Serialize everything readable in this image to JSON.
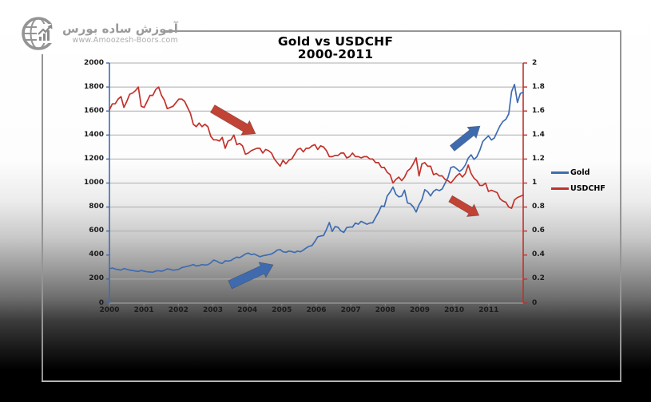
{
  "logo": {
    "brand_fa": "آموزش ساده بورس",
    "website": "www.Amoozesh-Boors.com"
  },
  "chart": {
    "title_line1": "Gold vs USDCHF",
    "title_line2": "2000-2011",
    "legend": [
      {
        "label": "Gold",
        "color": "#3E6CB2"
      },
      {
        "label": "USDCHF",
        "color": "#C2312B"
      }
    ]
  },
  "chart_data": {
    "type": "line",
    "title": "Gold vs USDCHF 2000-2011",
    "grid": "horizontal",
    "legend_position": "right",
    "colors": {
      "grid": "#ACACAC",
      "xtick": "#888888"
    },
    "x_ticks": [
      "2000",
      "2001",
      "2002",
      "2003",
      "2004",
      "2005",
      "2006",
      "2007",
      "2008",
      "2009",
      "2010",
      "2011"
    ],
    "x_range": [
      2000,
      2012
    ],
    "left_axis": {
      "series": "Gold",
      "min": 0,
      "max": 2000,
      "step": 200,
      "color": "#3E6CB2",
      "tick_labels": [
        "0",
        "200",
        "400",
        "600",
        "800",
        "1000",
        "1200",
        "1400",
        "1600",
        "1800",
        "2000"
      ]
    },
    "right_axis": {
      "series": "USDCHF",
      "min": 0,
      "max": 2,
      "step": 0.2,
      "color": "#C2312B",
      "tick_labels": [
        "0",
        "0.2",
        "0.4",
        "0.6",
        "0.8",
        "1",
        "1.2",
        "1.4",
        "1.6",
        "1.8",
        "2"
      ]
    },
    "series": [
      {
        "name": "Gold",
        "axis": "left",
        "color": "#3E6CB2",
        "x_start_year": 2000,
        "interval": "monthly",
        "values": [
          285,
          293,
          284,
          279,
          275,
          288,
          281,
          275,
          271,
          267,
          264,
          272,
          266,
          261,
          259,
          257,
          267,
          270,
          265,
          273,
          285,
          281,
          274,
          277,
          282,
          296,
          301,
          307,
          313,
          321,
          309,
          313,
          321,
          317,
          320,
          334,
          358,
          351,
          336,
          330,
          352,
          350,
          355,
          371,
          383,
          379,
          393,
          409,
          417,
          404,
          409,
          398,
          386,
          394,
          399,
          403,
          409,
          423,
          441,
          446,
          427,
          423,
          433,
          429,
          421,
          433,
          427,
          441,
          459,
          473,
          479,
          513,
          553,
          559,
          563,
          613,
          671,
          597,
          637,
          631,
          601,
          589,
          629,
          633,
          633,
          667,
          657,
          681,
          669,
          657,
          667,
          669,
          715,
          757,
          809,
          805,
          891,
          925,
          967,
          907,
          885,
          891,
          941,
          835,
          827,
          803,
          759,
          819,
          861,
          945,
          927,
          893,
          931,
          947,
          937,
          951,
          999,
          1045,
          1129,
          1137,
          1119,
          1097,
          1115,
          1151,
          1207,
          1235,
          1197,
          1219,
          1273,
          1345,
          1371,
          1393,
          1359,
          1375,
          1427,
          1477,
          1513,
          1531,
          1576,
          1762,
          1821,
          1671,
          1746,
          1756
        ]
      },
      {
        "name": "USDCHF",
        "axis": "right",
        "color": "#C2312B",
        "x_start_year": 2000,
        "interval": "monthly",
        "values": [
          1.61,
          1.66,
          1.66,
          1.7,
          1.72,
          1.63,
          1.68,
          1.74,
          1.75,
          1.77,
          1.8,
          1.64,
          1.63,
          1.68,
          1.73,
          1.73,
          1.78,
          1.8,
          1.73,
          1.69,
          1.62,
          1.63,
          1.64,
          1.67,
          1.7,
          1.7,
          1.68,
          1.63,
          1.58,
          1.49,
          1.47,
          1.5,
          1.47,
          1.49,
          1.47,
          1.39,
          1.36,
          1.36,
          1.35,
          1.38,
          1.29,
          1.35,
          1.36,
          1.4,
          1.32,
          1.33,
          1.31,
          1.24,
          1.25,
          1.27,
          1.28,
          1.29,
          1.29,
          1.25,
          1.28,
          1.27,
          1.25,
          1.2,
          1.17,
          1.14,
          1.19,
          1.16,
          1.19,
          1.2,
          1.24,
          1.28,
          1.29,
          1.26,
          1.29,
          1.29,
          1.31,
          1.32,
          1.28,
          1.31,
          1.3,
          1.27,
          1.22,
          1.22,
          1.23,
          1.23,
          1.25,
          1.25,
          1.21,
          1.22,
          1.25,
          1.22,
          1.22,
          1.21,
          1.22,
          1.22,
          1.2,
          1.2,
          1.17,
          1.17,
          1.13,
          1.13,
          1.09,
          1.07,
          1.0,
          1.03,
          1.05,
          1.02,
          1.05,
          1.1,
          1.12,
          1.16,
          1.21,
          1.06,
          1.16,
          1.17,
          1.14,
          1.14,
          1.07,
          1.08,
          1.06,
          1.06,
          1.03,
          1.02,
          1.0,
          1.03,
          1.06,
          1.08,
          1.05,
          1.08,
          1.15,
          1.08,
          1.04,
          1.02,
          0.98,
          0.98,
          1.0,
          0.93,
          0.94,
          0.93,
          0.92,
          0.87,
          0.85,
          0.84,
          0.8,
          0.79,
          0.86,
          0.88,
          0.89,
          0.9
        ]
      }
    ],
    "arrows": [
      {
        "meaning": "USDCHF downtrend",
        "axis": "right",
        "color": "#C04335",
        "tail": [
          2002.99,
          1.62
        ],
        "tip": [
          2004.24,
          1.41
        ]
      },
      {
        "meaning": "Gold uptrend",
        "axis": "left",
        "color": "#3F6BAE",
        "tail": [
          2003.5,
          153
        ],
        "tip": [
          2004.75,
          319
        ]
      },
      {
        "meaning": "Gold uptrend",
        "axis": "left",
        "color": "#3F6BAE",
        "tail": [
          2009.94,
          1289
        ],
        "tip": [
          2010.75,
          1475
        ]
      },
      {
        "meaning": "USDCHF downtrend",
        "axis": "right",
        "color": "#C04335",
        "tail": [
          2009.89,
          0.87
        ],
        "tip": [
          2010.72,
          0.73
        ]
      }
    ]
  }
}
